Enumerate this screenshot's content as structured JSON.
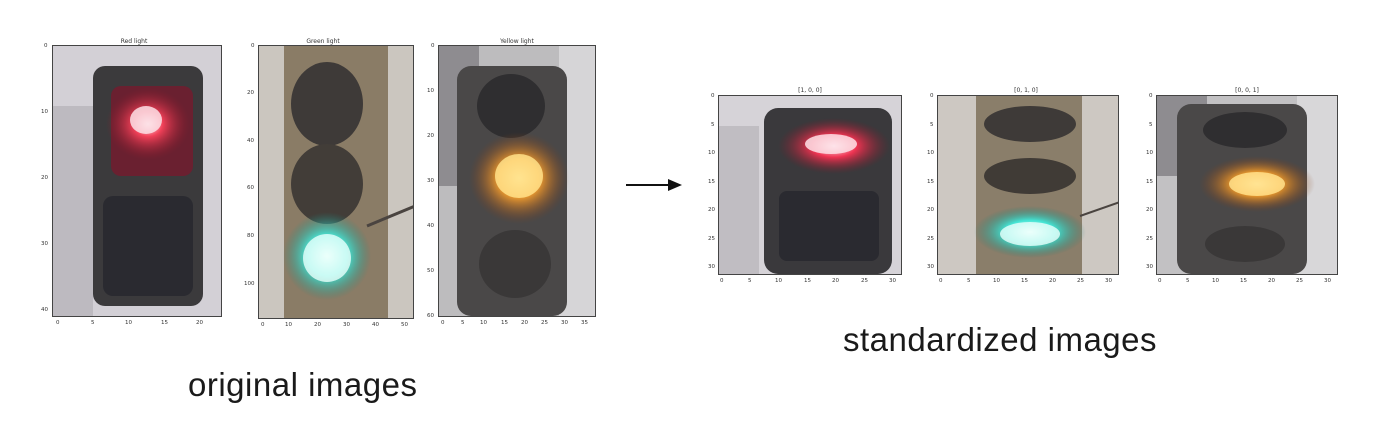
{
  "original": {
    "caption": "original images",
    "panels": [
      {
        "title": "Red light",
        "x_ticks": [
          "0",
          "5",
          "10",
          "15",
          "20"
        ],
        "y_ticks": [
          "0",
          "10",
          "20",
          "30",
          "40"
        ],
        "lit": "red"
      },
      {
        "title": "Green light",
        "x_ticks": [
          "0",
          "10",
          "20",
          "30",
          "40",
          "50"
        ],
        "y_ticks": [
          "0",
          "20",
          "40",
          "60",
          "80",
          "100"
        ],
        "lit": "green"
      },
      {
        "title": "Yellow light",
        "x_ticks": [
          "0",
          "5",
          "10",
          "15",
          "20",
          "25",
          "30",
          "35"
        ],
        "y_ticks": [
          "0",
          "10",
          "20",
          "30",
          "40",
          "50",
          "60"
        ],
        "lit": "yellow"
      }
    ]
  },
  "standardized": {
    "caption": "standardized images",
    "panels": [
      {
        "title": "[1, 0, 0]",
        "x_ticks": [
          "0",
          "5",
          "10",
          "15",
          "20",
          "25",
          "30"
        ],
        "y_ticks": [
          "0",
          "5",
          "10",
          "15",
          "20",
          "25",
          "30"
        ],
        "lit": "red"
      },
      {
        "title": "[0, 1, 0]",
        "x_ticks": [
          "0",
          "5",
          "10",
          "15",
          "20",
          "25",
          "30"
        ],
        "y_ticks": [
          "0",
          "5",
          "10",
          "15",
          "20",
          "25",
          "30"
        ],
        "lit": "green"
      },
      {
        "title": "[0, 0, 1]",
        "x_ticks": [
          "0",
          "5",
          "10",
          "15",
          "20",
          "25",
          "30"
        ],
        "y_ticks": [
          "0",
          "5",
          "10",
          "15",
          "20",
          "25",
          "30"
        ],
        "lit": "yellow"
      }
    ]
  },
  "colors": {
    "red_lamp": "#e8304a",
    "green_lamp": "#3fe6d6",
    "yellow_lamp": "#f4a62a",
    "housing": "#3a3838",
    "background_gray": "#c9c7c9",
    "arrow": "#111111"
  }
}
